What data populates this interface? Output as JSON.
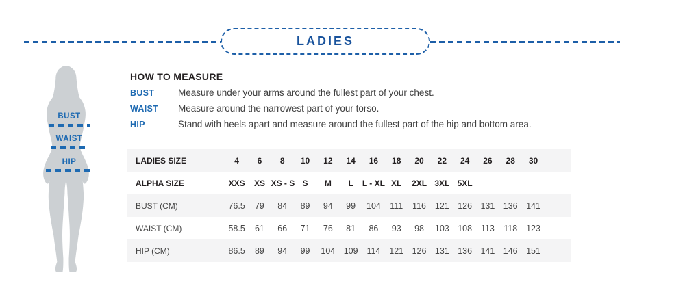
{
  "header": {
    "title": "LADIES"
  },
  "colors": {
    "accent_blue": "#1d5fa8",
    "title_blue": "#19539c",
    "silhouette_grey": "#ccd0d3",
    "table_stripe_grey": "#f4f4f5",
    "heading_black": "#231f20"
  },
  "figure": {
    "labels": [
      "BUST",
      "WAIST",
      "HIP"
    ]
  },
  "how_to_measure": {
    "heading": "HOW TO MEASURE",
    "items": [
      {
        "term": "BUST",
        "description": "Measure under your arms around the fullest part of your chest."
      },
      {
        "term": "WAIST",
        "description": "Measure around the narrowest part of your torso."
      },
      {
        "term": "HIP",
        "description": "Stand with heels apart and measure around the fullest part of the hip and bottom area."
      }
    ]
  },
  "size_table": {
    "rows": [
      {
        "label": "LADIES SIZE",
        "bold": true,
        "values": [
          "4",
          "6",
          "8",
          "10",
          "12",
          "14",
          "16",
          "18",
          "20",
          "22",
          "24",
          "26",
          "28",
          "30"
        ]
      },
      {
        "label": "ALPHA SIZE",
        "bold": true,
        "values": [
          "XXS",
          "XS",
          "XS - S",
          "S",
          "M",
          "L",
          "L - XL",
          "XL",
          "2XL",
          "3XL",
          "5XL",
          "",
          "",
          ""
        ]
      },
      {
        "label": "BUST (CM)",
        "bold": false,
        "values": [
          "76.5",
          "79",
          "84",
          "89",
          "94",
          "99",
          "104",
          "111",
          "116",
          "121",
          "126",
          "131",
          "136",
          "141"
        ]
      },
      {
        "label": "WAIST (CM)",
        "bold": false,
        "values": [
          "58.5",
          "61",
          "66",
          "71",
          "76",
          "81",
          "86",
          "93",
          "98",
          "103",
          "108",
          "113",
          "118",
          "123"
        ]
      },
      {
        "label": "HIP (CM)",
        "bold": false,
        "values": [
          "86.5",
          "89",
          "94",
          "99",
          "104",
          "109",
          "114",
          "121",
          "126",
          "131",
          "136",
          "141",
          "146",
          "151"
        ]
      }
    ]
  }
}
